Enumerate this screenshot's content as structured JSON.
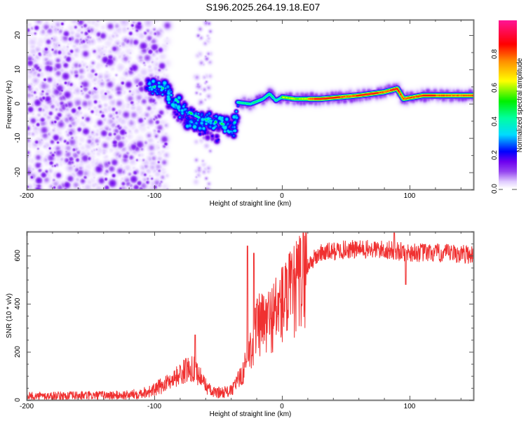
{
  "title": "S196.2025.264.19.18.E07",
  "chart_data": [
    {
      "type": "heatmap",
      "name": "spectrogram",
      "xlabel": "Height of straight line (km)",
      "ylabel": "Frequency (Hz)",
      "xlim": [
        -200,
        150
      ],
      "ylim": [
        -25,
        24.5
      ],
      "xticks": [
        -200,
        -100,
        0,
        100
      ],
      "yticks": [
        -20,
        -10,
        0,
        10,
        20
      ],
      "grid": false,
      "colorbar": {
        "label": "Normalized spectral amplitude",
        "range": [
          0.0,
          1.0
        ],
        "ticks": [
          "0.0",
          "0.2",
          "0.4",
          "0.6",
          "0.8"
        ],
        "colormap": [
          "#ffffff",
          "#d9c2ff",
          "#8a2be2",
          "#0000ff",
          "#00ffff",
          "#00ff00",
          "#ffff00",
          "#ff0000",
          "#ff1493"
        ]
      },
      "regions": [
        {
          "desc": "broadband noise scatter",
          "x": [
            -200,
            -100
          ],
          "freq": [
            -25,
            24.5
          ],
          "amplitude": [
            0.02,
            0.15
          ]
        },
        {
          "desc": "descending carrier track",
          "x": [
            -105,
            -30
          ],
          "freq_start": 5,
          "freq_end": -8,
          "amplitude": [
            0.15,
            0.5
          ]
        },
        {
          "desc": "stable carrier",
          "x": [
            -35,
            150
          ],
          "freq": [
            1,
            4
          ],
          "amplitude": [
            0.4,
            1.0
          ]
        }
      ],
      "carrier_track": [
        {
          "x": -105,
          "f": 5
        },
        {
          "x": -95,
          "f": 5
        },
        {
          "x": -85,
          "f": 2
        },
        {
          "x": -75,
          "f": -2
        },
        {
          "x": -65,
          "f": -4
        },
        {
          "x": -55,
          "f": -5
        },
        {
          "x": -45,
          "f": -6
        },
        {
          "x": -38,
          "f": -7.5
        },
        {
          "x": -35,
          "f": 0.5
        },
        {
          "x": -25,
          "f": 0
        },
        {
          "x": -15,
          "f": 1.5
        },
        {
          "x": -10,
          "f": 3
        },
        {
          "x": -5,
          "f": 1
        },
        {
          "x": 0,
          "f": 2
        },
        {
          "x": 10,
          "f": 1.5
        },
        {
          "x": 30,
          "f": 1.5
        },
        {
          "x": 60,
          "f": 2.5
        },
        {
          "x": 80,
          "f": 3.5
        },
        {
          "x": 90,
          "f": 4.5
        },
        {
          "x": 95,
          "f": 1.5
        },
        {
          "x": 110,
          "f": 2.5
        },
        {
          "x": 150,
          "f": 2.5
        }
      ]
    },
    {
      "type": "line",
      "name": "snr",
      "xlabel": "Height of straight line (km)",
      "ylabel": "SNR (10 * v/v)",
      "xlim": [
        -200,
        150
      ],
      "ylim": [
        0,
        700
      ],
      "xticks": [
        -200,
        -100,
        0,
        100
      ],
      "yticks": [
        0,
        200,
        400,
        600
      ],
      "grid": false,
      "color": "#f03030",
      "series": [
        {
          "name": "SNR",
          "envelope": [
            {
              "x": -200,
              "y": 15
            },
            {
              "x": -120,
              "y": 20
            },
            {
              "x": -100,
              "y": 40
            },
            {
              "x": -85,
              "y": 90
            },
            {
              "x": -70,
              "y": 140
            },
            {
              "x": -62,
              "y": 80
            },
            {
              "x": -55,
              "y": 30
            },
            {
              "x": -40,
              "y": 35
            },
            {
              "x": -30,
              "y": 120
            },
            {
              "x": -20,
              "y": 300
            },
            {
              "x": -10,
              "y": 330
            },
            {
              "x": 0,
              "y": 400
            },
            {
              "x": 10,
              "y": 450
            },
            {
              "x": 20,
              "y": 560
            },
            {
              "x": 30,
              "y": 610
            },
            {
              "x": 50,
              "y": 625
            },
            {
              "x": 80,
              "y": 625
            },
            {
              "x": 95,
              "y": 615
            },
            {
              "x": 120,
              "y": 610
            },
            {
              "x": 150,
              "y": 605
            }
          ],
          "spikes": [
            {
              "x": -68,
              "y": 270
            },
            {
              "x": -27,
              "y": 640
            },
            {
              "x": -22,
              "y": 610
            },
            {
              "x": 88,
              "y": 700
            },
            {
              "x": 97,
              "y": 480
            }
          ]
        }
      ]
    }
  ]
}
